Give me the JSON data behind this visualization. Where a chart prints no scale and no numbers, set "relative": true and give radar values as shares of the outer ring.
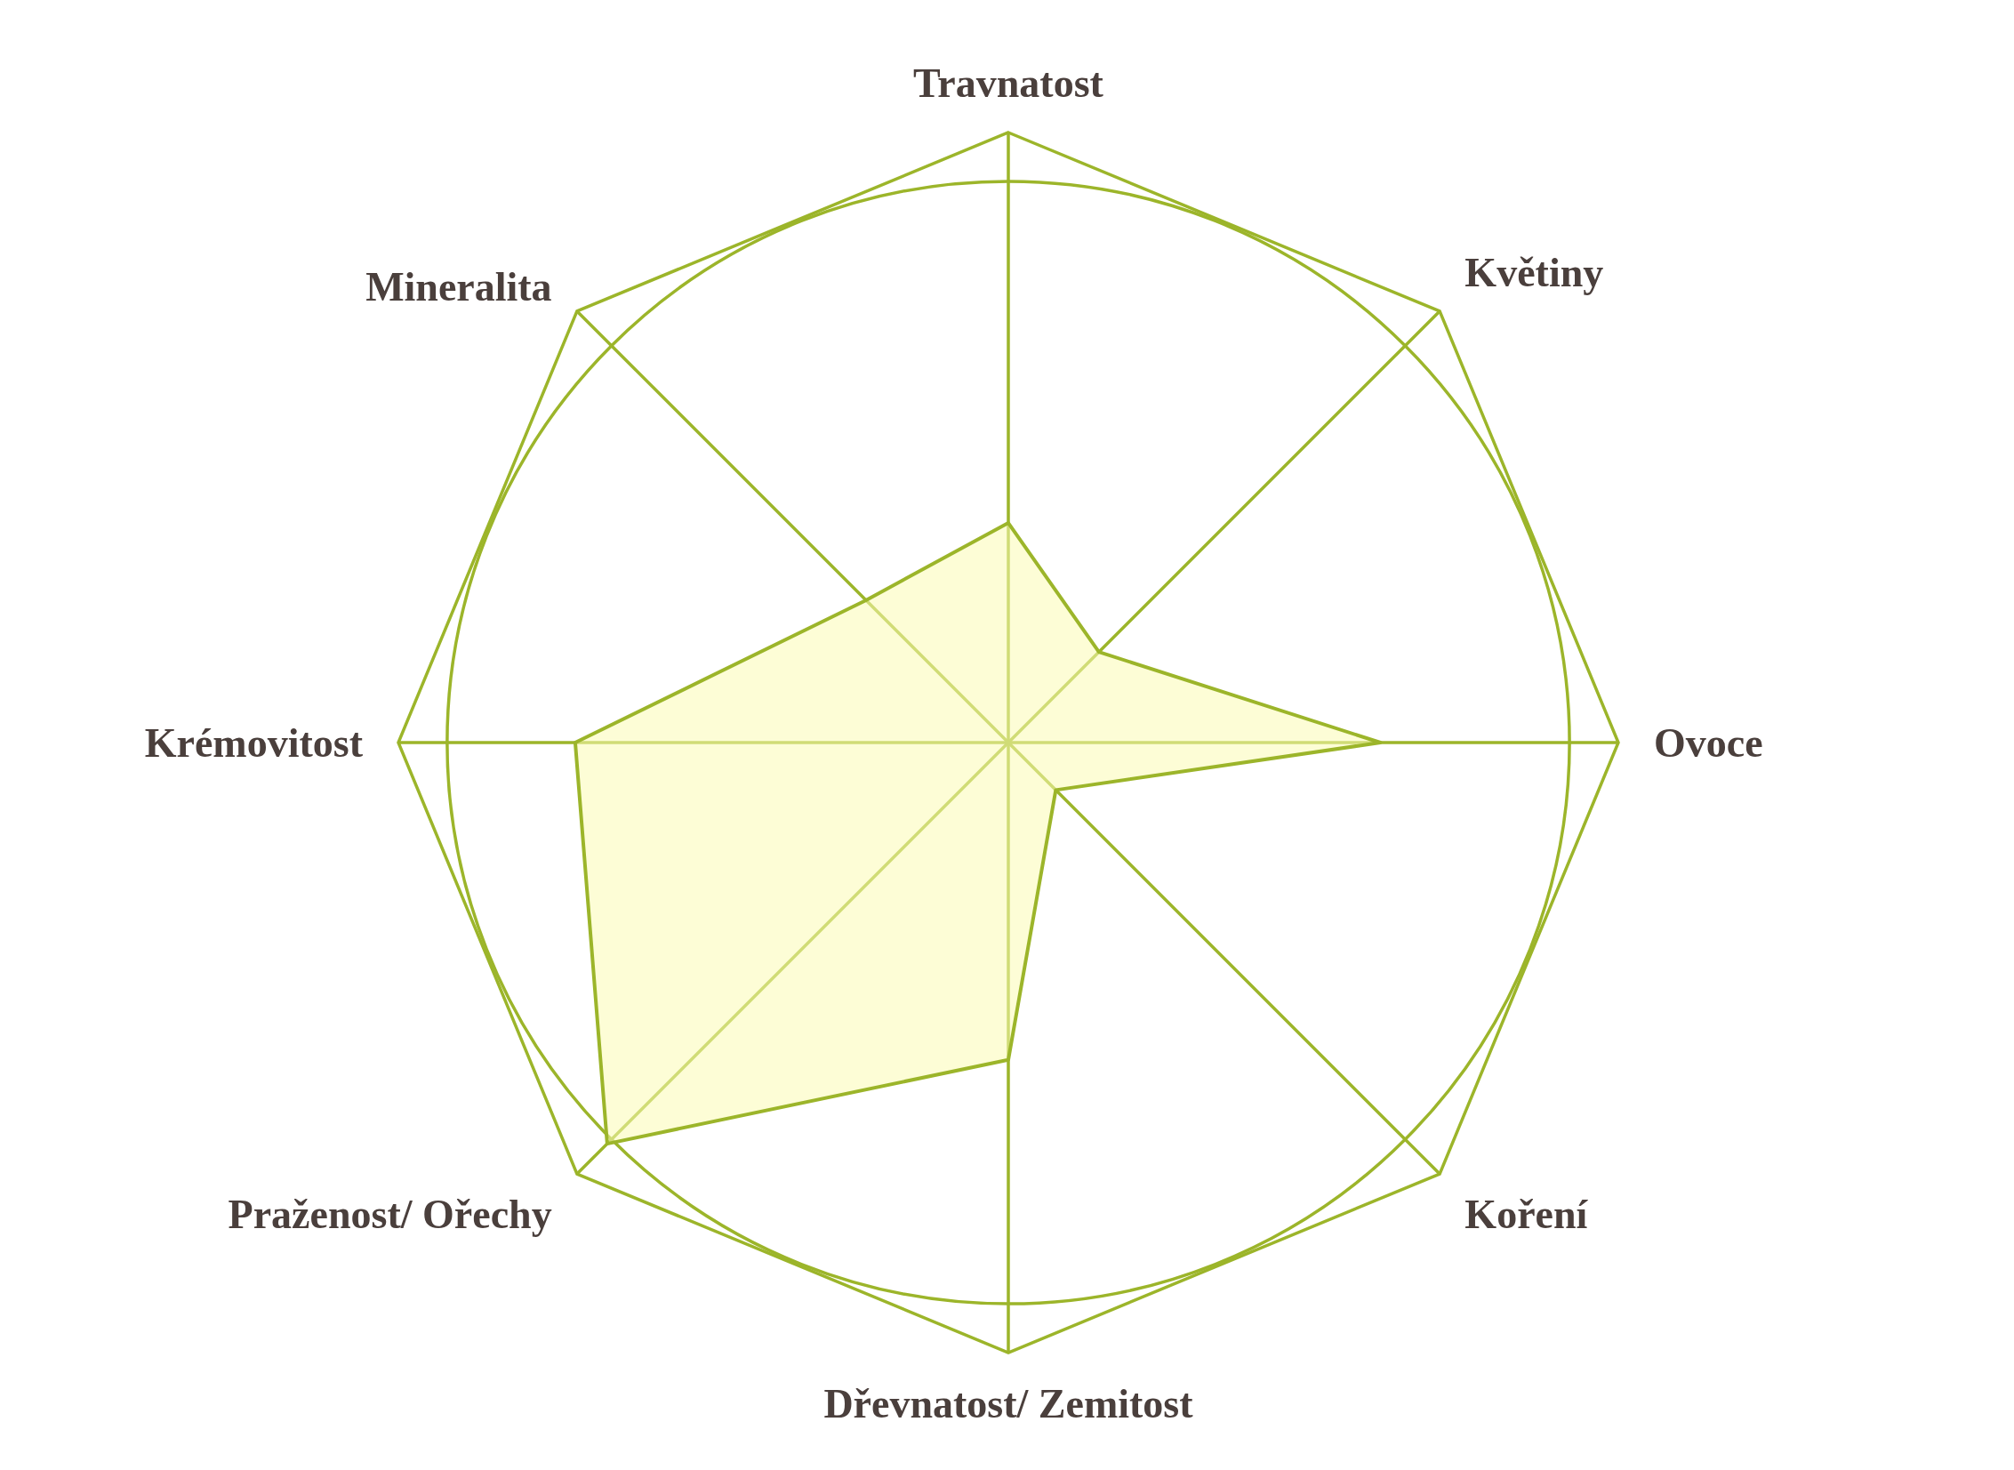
{
  "chart_data": {
    "type": "radar",
    "relative": true,
    "grid": true,
    "legend": false,
    "categories": [
      "Travnatost",
      "Květiny",
      "Ovoce",
      "Koření",
      "Dřevnatost/ Zemitost",
      "Praženost/ Ořechy",
      "Krémovitost",
      "Mineralita"
    ],
    "series": [
      {
        "color": "#9cb52a",
        "values": [
          0.36,
          0.21,
          0.61,
          0.11,
          0.52,
          0.93,
          0.71,
          0.33
        ]
      }
    ]
  }
}
